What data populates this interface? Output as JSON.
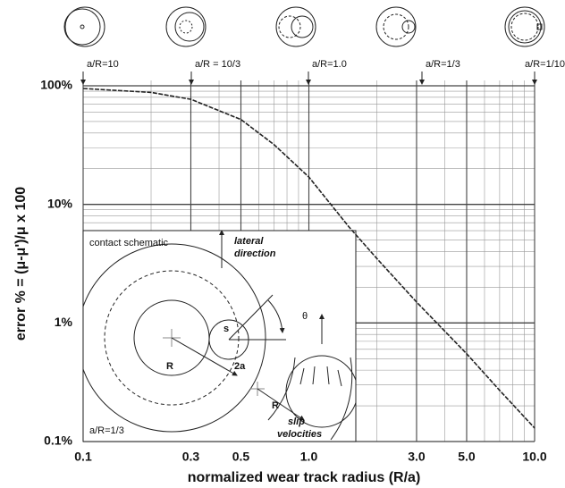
{
  "chart_data": {
    "type": "line",
    "x_label": "normalized wear track radius (R/a)",
    "y_label": "error % = (μ-μ')/μ x 100",
    "log_x": true,
    "log_y": true,
    "grid": true,
    "minor_grid": true,
    "color": "#222222",
    "x": [
      0.1,
      0.2,
      0.3,
      0.5,
      0.7,
      1.0,
      1.5,
      2.0,
      3.0,
      5.0,
      7.0,
      10.0
    ],
    "values": [
      95,
      88,
      77,
      52,
      32,
      17,
      6.5,
      3.5,
      1.5,
      0.55,
      0.27,
      0.13
    ],
    "xlim": [
      0.1,
      10
    ],
    "xticks": [
      0.1,
      0.3,
      0.5,
      {
        "value": 1,
        "label": "1.0"
      },
      {
        "value": 3,
        "label": "3.0"
      },
      {
        "value": 5,
        "label": "5.0"
      },
      {
        "value": 10,
        "label": "10.0"
      }
    ],
    "ylim": [
      0.1,
      100
    ],
    "yticks": [
      {
        "value": 0.1,
        "label": "0.1%"
      },
      {
        "value": 1,
        "label": "1%"
      },
      {
        "value": 10,
        "label": "10%"
      },
      {
        "value": 100,
        "label": "100%"
      }
    ],
    "top_annotations": [
      "a/R=10",
      "a/R = 10/3",
      "a/R=1.0",
      "a/R=1/3",
      "a/R=1/10"
    ],
    "inset": {
      "title": "contact schematic",
      "lateral": [
        "lateral",
        "direction"
      ],
      "theta": "θ",
      "s": "s",
      "r1": "R",
      "two_a": "2a",
      "r2": "R",
      "slip": [
        "slip",
        "velocities"
      ],
      "ratio": "a/R=1/3"
    }
  }
}
